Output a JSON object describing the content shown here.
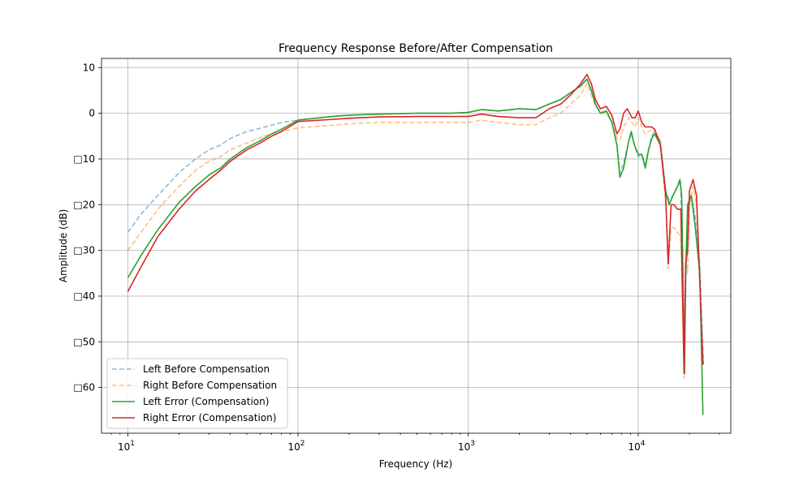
{
  "chart_data": {
    "type": "line",
    "title": "Frequency Response Before/After Compensation",
    "xlabel": "Frequency (Hz)",
    "ylabel": "Amplitude (dB)",
    "xscale": "log",
    "xlim": [
      7,
      35000
    ],
    "ylim": [
      -70,
      12
    ],
    "x_ticks": [
      {
        "value": 10,
        "mantissa": "10",
        "exp": "1"
      },
      {
        "value": 100,
        "mantissa": "10",
        "exp": "2"
      },
      {
        "value": 1000,
        "mantissa": "10",
        "exp": "3"
      },
      {
        "value": 10000,
        "mantissa": "10",
        "exp": "4"
      }
    ],
    "y_ticks": [
      {
        "value": 10,
        "label": "10"
      },
      {
        "value": 0,
        "label": "0"
      },
      {
        "value": -10,
        "label": "□10"
      },
      {
        "value": -20,
        "label": "□20"
      },
      {
        "value": -30,
        "label": "□30"
      },
      {
        "value": -40,
        "label": "□40"
      },
      {
        "value": -50,
        "label": "□50"
      },
      {
        "value": -60,
        "label": "□60"
      }
    ],
    "grid": true,
    "legend_position": "lower-left",
    "series": [
      {
        "name": "Left Before Compensation",
        "color": "#1f77b4",
        "dashed": true,
        "opacity": 0.5,
        "points": [
          [
            10,
            -26
          ],
          [
            12,
            -22
          ],
          [
            15,
            -18
          ],
          [
            20,
            -13
          ],
          [
            25,
            -10
          ],
          [
            30,
            -8
          ],
          [
            35,
            -7
          ],
          [
            40,
            -5.5
          ],
          [
            50,
            -4
          ],
          [
            60,
            -3.3
          ],
          [
            70,
            -2.6
          ],
          [
            80,
            -2
          ],
          [
            100,
            -1.5
          ],
          [
            150,
            -0.8
          ],
          [
            200,
            -0.4
          ],
          [
            300,
            -0.2
          ],
          [
            500,
            0
          ],
          [
            800,
            0
          ],
          [
            1000,
            0.2
          ],
          [
            1200,
            0.8
          ],
          [
            1500,
            0.5
          ],
          [
            2000,
            1
          ],
          [
            2500,
            0.8
          ],
          [
            3000,
            2
          ],
          [
            3500,
            3
          ],
          [
            4000,
            4.5
          ],
          [
            4600,
            6
          ],
          [
            5000,
            7.5
          ],
          [
            5300,
            5
          ],
          [
            5600,
            2
          ],
          [
            6000,
            0
          ],
          [
            6500,
            0.5
          ],
          [
            7000,
            -2
          ],
          [
            7500,
            -7
          ],
          [
            7800,
            -13
          ],
          [
            8200,
            -11
          ],
          [
            8800,
            -6
          ],
          [
            9100,
            -4.5
          ],
          [
            9500,
            -7
          ],
          [
            10000,
            -9.5
          ],
          [
            10500,
            -9
          ],
          [
            11000,
            -11
          ],
          [
            11500,
            -8
          ],
          [
            12000,
            -5
          ],
          [
            12500,
            -4
          ],
          [
            13500,
            -6
          ],
          [
            14500,
            -17
          ],
          [
            15200,
            -19
          ],
          [
            16000,
            -18
          ],
          [
            17000,
            -16
          ],
          [
            17700,
            -15
          ],
          [
            18200,
            -30
          ],
          [
            18600,
            -57
          ],
          [
            19200,
            -30
          ],
          [
            19800,
            -20
          ],
          [
            20500,
            -18
          ],
          [
            21500,
            -22
          ],
          [
            23000,
            -33
          ],
          [
            24200,
            -55
          ]
        ]
      },
      {
        "name": "Right Before Compensation",
        "color": "#ff7f0e",
        "dashed": true,
        "opacity": 0.5,
        "points": [
          [
            10,
            -30
          ],
          [
            12,
            -26
          ],
          [
            15,
            -21
          ],
          [
            20,
            -16
          ],
          [
            25,
            -12.5
          ],
          [
            30,
            -10.5
          ],
          [
            35,
            -9.5
          ],
          [
            40,
            -8
          ],
          [
            50,
            -6.5
          ],
          [
            60,
            -5.3
          ],
          [
            70,
            -4.5
          ],
          [
            80,
            -4
          ],
          [
            100,
            -3.2
          ],
          [
            150,
            -2.7
          ],
          [
            200,
            -2.3
          ],
          [
            300,
            -2
          ],
          [
            500,
            -2
          ],
          [
            800,
            -2
          ],
          [
            1000,
            -2
          ],
          [
            1200,
            -1.5
          ],
          [
            1500,
            -2
          ],
          [
            2000,
            -2.5
          ],
          [
            2500,
            -2.5
          ],
          [
            3000,
            -1
          ],
          [
            3500,
            0
          ],
          [
            4000,
            2
          ],
          [
            4600,
            4
          ],
          [
            5000,
            6.5
          ],
          [
            5300,
            4
          ],
          [
            5600,
            1.5
          ],
          [
            6000,
            0.5
          ],
          [
            6500,
            0
          ],
          [
            7000,
            -2
          ],
          [
            7500,
            -5.5
          ],
          [
            7800,
            -6
          ],
          [
            8200,
            -3
          ],
          [
            8800,
            -1
          ],
          [
            9200,
            -2
          ],
          [
            9600,
            -3
          ],
          [
            10000,
            -1
          ],
          [
            10500,
            -3
          ],
          [
            11000,
            -4.5
          ],
          [
            11500,
            -4
          ],
          [
            12000,
            -3.5
          ],
          [
            12500,
            -4
          ],
          [
            13500,
            -6
          ],
          [
            14500,
            -20
          ],
          [
            15000,
            -34
          ],
          [
            15600,
            -25
          ],
          [
            16200,
            -25
          ],
          [
            17000,
            -26
          ],
          [
            17800,
            -27
          ],
          [
            18200,
            -40
          ],
          [
            18600,
            -58
          ],
          [
            19000,
            -32
          ],
          [
            19500,
            -35
          ],
          [
            20000,
            -20
          ],
          [
            21000,
            -16
          ],
          [
            22000,
            -20
          ],
          [
            24000,
            -55
          ]
        ]
      },
      {
        "name": "Left Error (Compensation)",
        "color": "#2ca02c",
        "dashed": false,
        "opacity": 1,
        "points": [
          [
            10,
            -36
          ],
          [
            12,
            -31
          ],
          [
            15,
            -25.5
          ],
          [
            20,
            -19.5
          ],
          [
            25,
            -16
          ],
          [
            30,
            -13.5
          ],
          [
            35,
            -12
          ],
          [
            40,
            -10
          ],
          [
            50,
            -7.5
          ],
          [
            60,
            -6
          ],
          [
            70,
            -4.5
          ],
          [
            80,
            -3.5
          ],
          [
            100,
            -1.5
          ],
          [
            150,
            -0.8
          ],
          [
            200,
            -0.4
          ],
          [
            300,
            -0.2
          ],
          [
            500,
            0
          ],
          [
            800,
            0
          ],
          [
            1000,
            0.2
          ],
          [
            1200,
            0.8
          ],
          [
            1500,
            0.5
          ],
          [
            2000,
            1
          ],
          [
            2500,
            0.8
          ],
          [
            3000,
            2
          ],
          [
            3500,
            3
          ],
          [
            4000,
            4.5
          ],
          [
            4600,
            6
          ],
          [
            5000,
            7.5
          ],
          [
            5300,
            5
          ],
          [
            5600,
            2
          ],
          [
            6000,
            0
          ],
          [
            6500,
            0.5
          ],
          [
            7000,
            -2
          ],
          [
            7500,
            -7
          ],
          [
            7800,
            -14
          ],
          [
            8200,
            -12
          ],
          [
            8800,
            -6
          ],
          [
            9100,
            -4
          ],
          [
            9500,
            -7
          ],
          [
            10000,
            -9
          ],
          [
            10500,
            -9
          ],
          [
            11000,
            -12
          ],
          [
            11500,
            -8
          ],
          [
            12000,
            -5.5
          ],
          [
            12500,
            -4.5
          ],
          [
            13500,
            -7
          ],
          [
            14500,
            -17
          ],
          [
            15200,
            -20
          ],
          [
            16000,
            -18
          ],
          [
            17000,
            -16
          ],
          [
            17600,
            -14.5
          ],
          [
            18000,
            -18
          ],
          [
            18400,
            -40
          ],
          [
            18700,
            -57
          ],
          [
            19000,
            -35
          ],
          [
            19500,
            -20
          ],
          [
            20500,
            -18
          ],
          [
            21500,
            -24
          ],
          [
            23000,
            -35
          ],
          [
            24000,
            -66
          ]
        ]
      },
      {
        "name": "Right Error (Compensation)",
        "color": "#d62728",
        "dashed": false,
        "opacity": 1,
        "points": [
          [
            10,
            -39
          ],
          [
            12,
            -33.5
          ],
          [
            15,
            -27
          ],
          [
            20,
            -21
          ],
          [
            25,
            -17
          ],
          [
            30,
            -14.5
          ],
          [
            35,
            -12.5
          ],
          [
            40,
            -10.5
          ],
          [
            50,
            -8
          ],
          [
            60,
            -6.5
          ],
          [
            70,
            -5
          ],
          [
            80,
            -4
          ],
          [
            100,
            -1.8
          ],
          [
            150,
            -1.4
          ],
          [
            200,
            -1.1
          ],
          [
            300,
            -0.8
          ],
          [
            500,
            -0.7
          ],
          [
            800,
            -0.7
          ],
          [
            1000,
            -0.7
          ],
          [
            1200,
            -0.2
          ],
          [
            1500,
            -0.7
          ],
          [
            2000,
            -1
          ],
          [
            2500,
            -1
          ],
          [
            3000,
            1
          ],
          [
            3500,
            2
          ],
          [
            4000,
            4
          ],
          [
            4600,
            6.5
          ],
          [
            5000,
            8.5
          ],
          [
            5300,
            6.5
          ],
          [
            5600,
            3
          ],
          [
            6000,
            1
          ],
          [
            6500,
            1.5
          ],
          [
            7000,
            -0.5
          ],
          [
            7500,
            -4.5
          ],
          [
            7800,
            -3.5
          ],
          [
            8200,
            0
          ],
          [
            8600,
            1
          ],
          [
            9200,
            -1
          ],
          [
            9600,
            -1
          ],
          [
            10000,
            0.5
          ],
          [
            10500,
            -2
          ],
          [
            11000,
            -3
          ],
          [
            11500,
            -3
          ],
          [
            12000,
            -3
          ],
          [
            12500,
            -3.5
          ],
          [
            13500,
            -7
          ],
          [
            14500,
            -18
          ],
          [
            15000,
            -33
          ],
          [
            15600,
            -20
          ],
          [
            16200,
            -20
          ],
          [
            17000,
            -21
          ],
          [
            17800,
            -21
          ],
          [
            18200,
            -40
          ],
          [
            18600,
            -57
          ],
          [
            19000,
            -33
          ],
          [
            19500,
            -30
          ],
          [
            20000,
            -17
          ],
          [
            21000,
            -14.5
          ],
          [
            22000,
            -18
          ],
          [
            24000,
            -55
          ]
        ]
      }
    ]
  }
}
